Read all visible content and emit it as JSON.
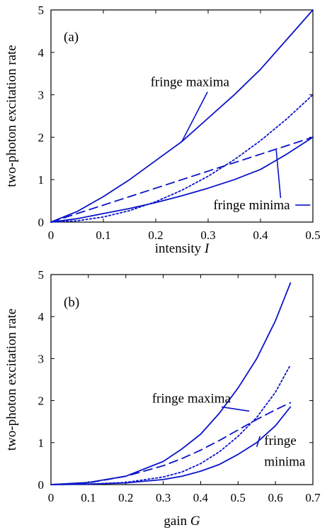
{
  "chart_data": [
    {
      "type": "line",
      "panel_tag": "(a)",
      "xlabel": "intensity",
      "xlabel_symbol": "I",
      "ylabel": "two-photon excitation rate",
      "xlim": [
        0,
        0.5
      ],
      "ylim": [
        0,
        5
      ],
      "xticks": [
        "0",
        "0.1",
        "0.2",
        "0.3",
        "0.4",
        "0.5"
      ],
      "yticks": [
        "0",
        "1",
        "2",
        "3",
        "4",
        "5"
      ],
      "grid": false,
      "x": [
        0,
        0.05,
        0.1,
        0.15,
        0.2,
        0.25,
        0.3,
        0.35,
        0.4,
        0.45,
        0.5
      ],
      "series": [
        {
          "style": "solid",
          "values": [
            0,
            0.25,
            0.6,
            1.0,
            1.45,
            1.9,
            2.45,
            3.0,
            3.6,
            4.3,
            5.0
          ]
        },
        {
          "style": "dotted",
          "values": [
            0,
            0.03,
            0.12,
            0.27,
            0.48,
            0.75,
            1.08,
            1.47,
            1.92,
            2.43,
            3.0
          ]
        },
        {
          "style": "dashed",
          "values": [
            0,
            0.2,
            0.4,
            0.6,
            0.8,
            1.0,
            1.2,
            1.4,
            1.6,
            1.8,
            2.0
          ]
        },
        {
          "style": "solid",
          "values": [
            0,
            0.08,
            0.2,
            0.32,
            0.46,
            0.62,
            0.8,
            1.0,
            1.24,
            1.6,
            2.0
          ]
        }
      ],
      "annotations": [
        {
          "text": "fringe maxima",
          "x": 0.19,
          "y": 3.2,
          "arrow_to": [
            0.25,
            1.9
          ]
        },
        {
          "text": "fringe minima",
          "x": 0.31,
          "y": 0.3,
          "arrow_to": [
            0.43,
            1.7
          ],
          "arrow_to_2": [
            0.495,
            0.3
          ]
        }
      ]
    },
    {
      "type": "line",
      "panel_tag": "(b)",
      "xlabel": "gain",
      "xlabel_symbol": "G",
      "ylabel": "two-photon excitation rate",
      "xlim": [
        0,
        0.7
      ],
      "ylim": [
        0,
        5
      ],
      "xticks": [
        "0",
        "0.1",
        "0.2",
        "0.3",
        "0.4",
        "0.5",
        "0.6",
        "0.7"
      ],
      "yticks": [
        "0",
        "1",
        "2",
        "3",
        "4",
        "5"
      ],
      "grid": false,
      "x": [
        0,
        0.1,
        0.2,
        0.3,
        0.35,
        0.4,
        0.45,
        0.5,
        0.55,
        0.6,
        0.64
      ],
      "series": [
        {
          "style": "solid",
          "values": [
            0,
            0.05,
            0.2,
            0.55,
            0.85,
            1.2,
            1.7,
            2.3,
            3.0,
            3.9,
            4.8
          ]
        },
        {
          "style": "dotted",
          "values": [
            0,
            0.01,
            0.05,
            0.18,
            0.3,
            0.5,
            0.78,
            1.15,
            1.6,
            2.2,
            2.85
          ]
        },
        {
          "style": "dashed",
          "values": [
            0,
            0.04,
            0.2,
            0.45,
            0.62,
            0.82,
            1.05,
            1.3,
            1.55,
            1.78,
            1.95
          ]
        },
        {
          "style": "solid",
          "values": [
            0,
            0.01,
            0.04,
            0.12,
            0.2,
            0.32,
            0.48,
            0.72,
            1.0,
            1.4,
            1.85
          ]
        }
      ],
      "annotations": [
        {
          "text": "fringe maxima",
          "x": 0.27,
          "y": 1.95,
          "arrow_to": [
            0.53,
            1.75
          ]
        },
        {
          "text": "fringe",
          "x": 0.57,
          "y": 0.95,
          "arrow_to": [
            0.55,
            0.9
          ]
        },
        {
          "text": "minima",
          "x": 0.57,
          "y": 0.45
        }
      ]
    }
  ],
  "line_color": "#0a14c8"
}
